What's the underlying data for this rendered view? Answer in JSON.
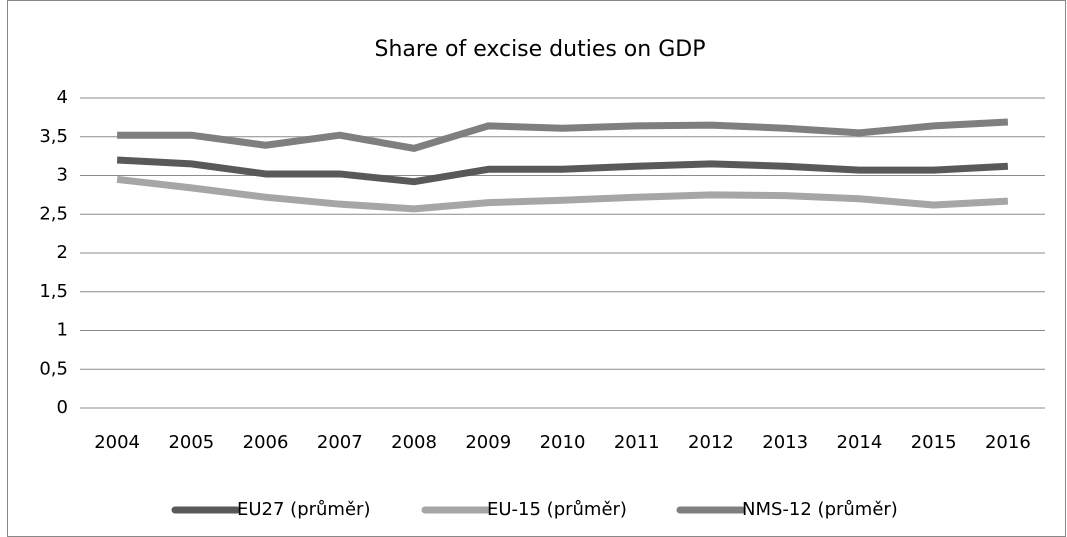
{
  "chart_data": {
    "type": "line",
    "title": "Share of excise duties on GDP",
    "categories": [
      "2004",
      "2005",
      "2006",
      "2007",
      "2008",
      "2009",
      "2010",
      "2011",
      "2012",
      "2013",
      "2014",
      "2015",
      "2016"
    ],
    "series": [
      {
        "name": "EU27 (průměr)",
        "color": "#595959",
        "values": [
          3.2,
          3.15,
          3.02,
          3.02,
          2.92,
          3.08,
          3.08,
          3.12,
          3.15,
          3.12,
          3.07,
          3.07,
          3.12
        ]
      },
      {
        "name": "EU-15 (průměr)",
        "color": "#a6a6a6",
        "values": [
          2.95,
          2.84,
          2.72,
          2.63,
          2.57,
          2.65,
          2.68,
          2.72,
          2.75,
          2.74,
          2.7,
          2.62,
          2.67
        ]
      },
      {
        "name": "NMS-12 (průměr)",
        "color": "#7f7f7f",
        "values": [
          3.52,
          3.52,
          3.39,
          3.52,
          3.35,
          3.64,
          3.61,
          3.64,
          3.65,
          3.61,
          3.55,
          3.64,
          3.69
        ]
      }
    ],
    "ylim": [
      0,
      4
    ],
    "yticks": [
      0,
      {
        "value": 0.5,
        "label": "0,5"
      },
      1,
      {
        "value": 1.5,
        "label": "1,5"
      },
      2,
      {
        "value": 2.5,
        "label": "2,5"
      },
      3,
      {
        "value": 3.5,
        "label": "3,5"
      },
      4
    ],
    "grid": true,
    "legend": "bottom"
  }
}
